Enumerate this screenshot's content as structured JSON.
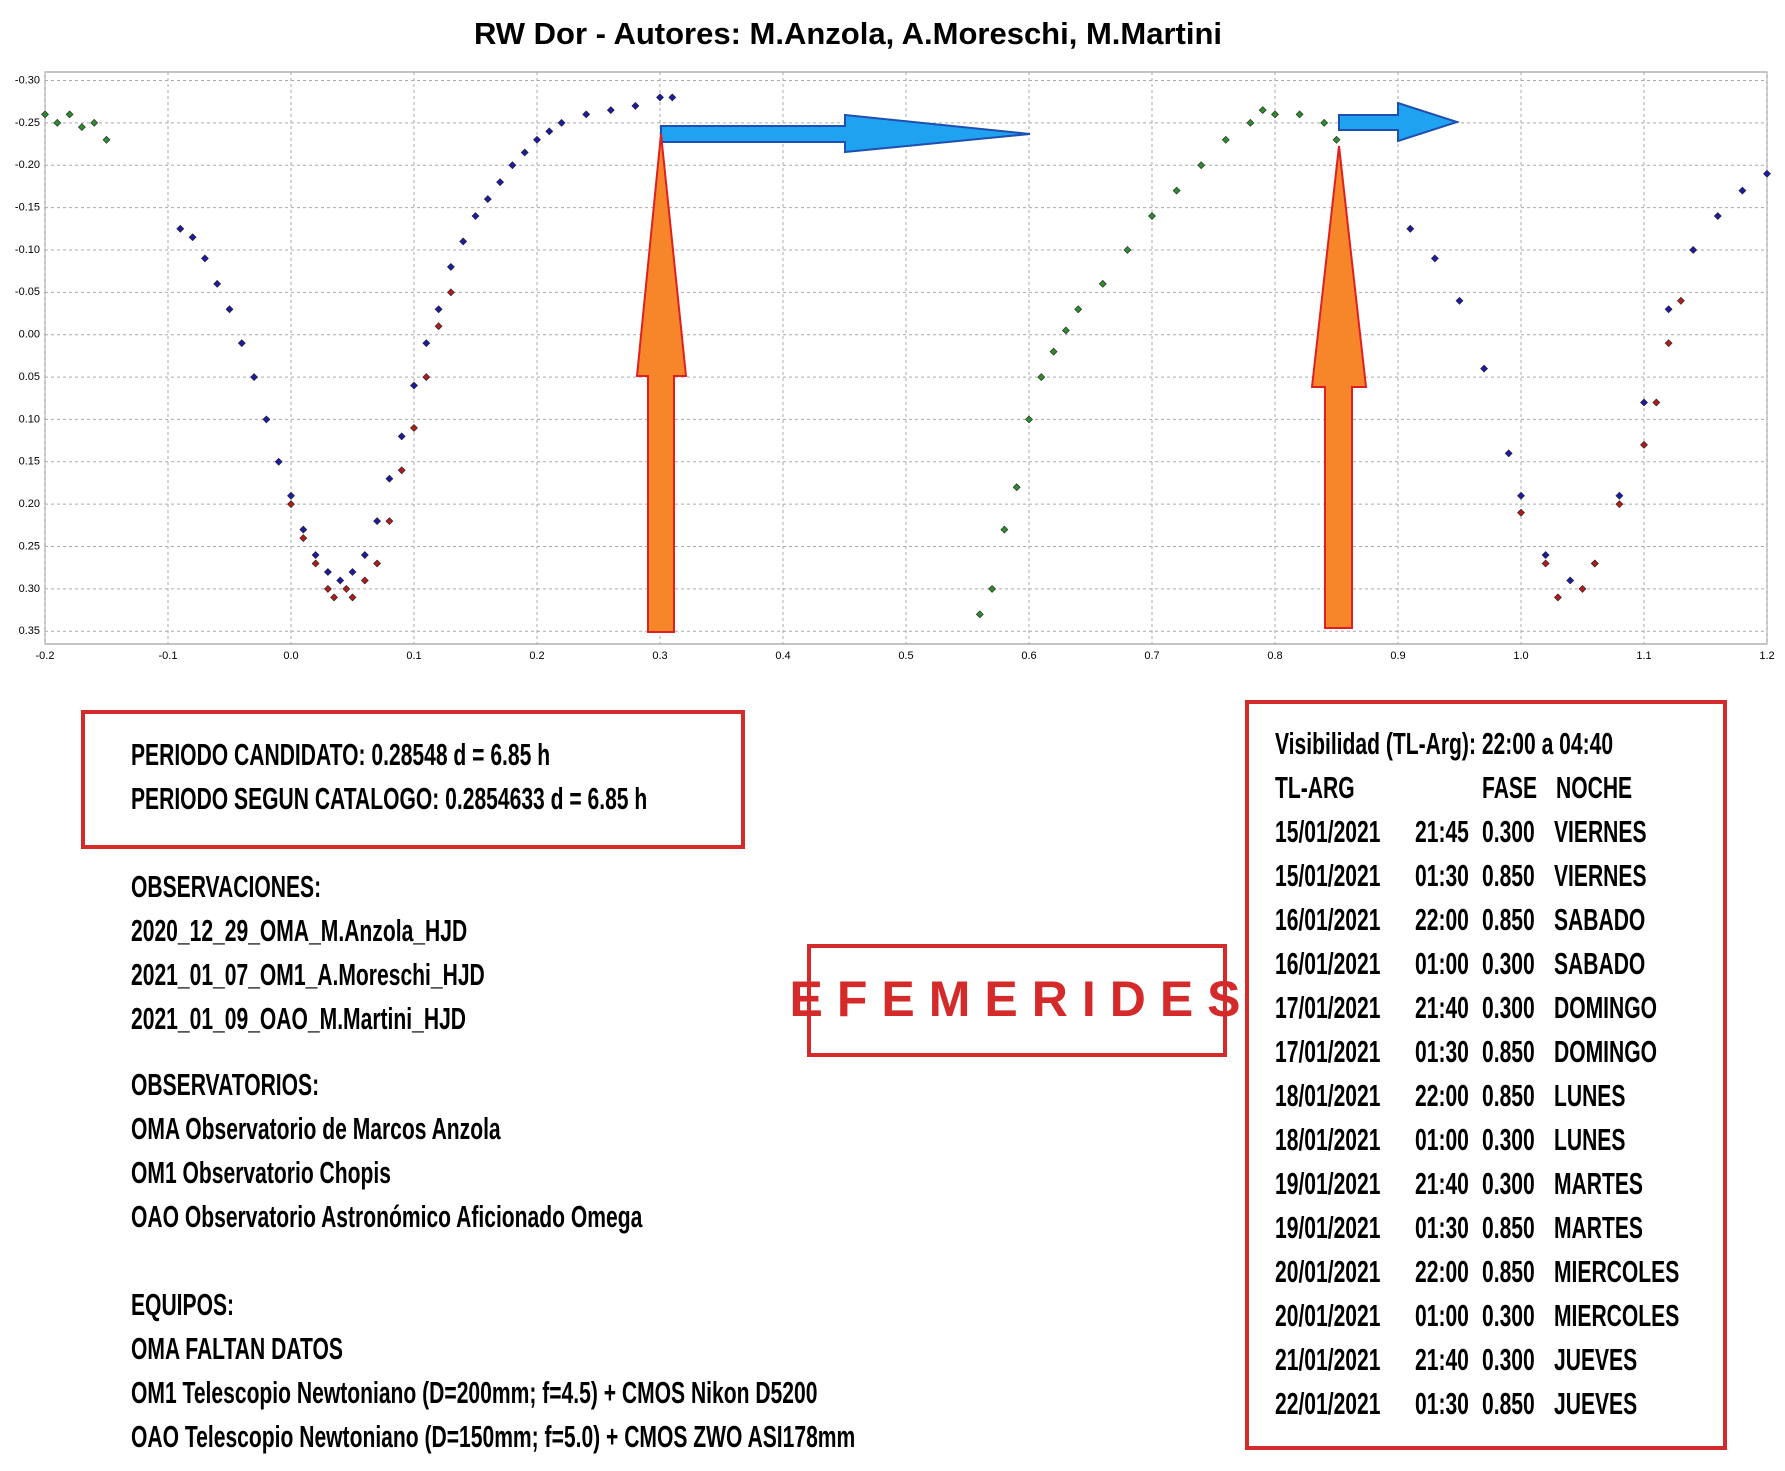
{
  "chart_data": {
    "type": "scatter",
    "title": "RW Dor - Autores: M.Anzola, A.Moreschi, M.Martini",
    "xlim": [
      -0.2,
      1.2
    ],
    "ylim": [
      -0.31,
      0.365
    ],
    "y_inverted": true,
    "grid": true,
    "xticks": [
      -0.2,
      -0.1,
      {
        "value": 0,
        "label": "0.0"
      },
      0.1,
      0.2,
      0.3,
      0.4,
      0.5,
      0.6,
      0.7,
      0.8,
      0.9,
      {
        "value": 1,
        "label": "1.0"
      },
      1.1,
      1.2
    ],
    "yticks": [
      {
        "value": -0.3,
        "label": "-0.30"
      },
      -0.25,
      {
        "value": -0.2,
        "label": "-0.20"
      },
      -0.15,
      {
        "value": -0.1,
        "label": "-0.10"
      },
      -0.05,
      {
        "value": 0,
        "label": "0.00"
      },
      0.05,
      {
        "value": 0.1,
        "label": "0.10"
      },
      0.15,
      {
        "value": 0.2,
        "label": "0.20"
      },
      0.25,
      {
        "value": 0.3,
        "label": "0.30"
      },
      0.35
    ],
    "series": [
      {
        "color": "#1c1ca0",
        "x": [
          -0.09,
          -0.08,
          -0.07,
          -0.06,
          -0.05,
          -0.04,
          -0.03,
          -0.02,
          -0.01,
          0.0,
          0.01,
          0.02,
          0.03,
          0.04,
          0.05,
          0.06,
          0.07,
          0.08,
          0.09,
          0.1,
          0.11,
          0.12,
          0.13,
          0.14,
          0.15,
          0.16,
          0.17,
          0.18,
          0.19,
          0.2,
          0.21,
          0.22,
          0.24,
          0.26,
          0.28,
          0.3,
          0.31,
          0.91,
          0.93,
          0.95,
          0.97,
          0.99,
          1.0,
          1.02,
          1.04,
          1.06,
          1.08,
          1.1,
          1.12,
          1.14,
          1.16,
          1.18,
          1.2
        ],
        "values": [
          -0.125,
          -0.115,
          -0.09,
          -0.06,
          -0.03,
          0.01,
          0.05,
          0.1,
          0.15,
          0.19,
          0.23,
          0.26,
          0.28,
          0.29,
          0.28,
          0.26,
          0.22,
          0.17,
          0.12,
          0.06,
          0.01,
          -0.03,
          -0.08,
          -0.11,
          -0.14,
          -0.16,
          -0.18,
          -0.2,
          -0.215,
          -0.23,
          -0.24,
          -0.25,
          -0.26,
          -0.265,
          -0.27,
          -0.28,
          -0.28,
          -0.125,
          -0.09,
          -0.04,
          0.04,
          0.14,
          0.19,
          0.26,
          0.29,
          0.27,
          0.19,
          0.08,
          -0.03,
          -0.1,
          -0.14,
          -0.17,
          -0.19
        ]
      },
      {
        "color": "#b01c1c",
        "x": [
          0.0,
          0.01,
          0.02,
          0.03,
          0.035,
          0.045,
          0.05,
          0.06,
          0.07,
          0.08,
          0.09,
          0.1,
          0.11,
          0.12,
          0.13,
          1.0,
          1.02,
          1.03,
          1.05,
          1.06,
          1.08,
          1.1,
          1.11,
          1.12,
          1.13
        ],
        "values": [
          0.2,
          0.24,
          0.27,
          0.3,
          0.31,
          0.3,
          0.31,
          0.29,
          0.27,
          0.22,
          0.16,
          0.11,
          0.05,
          -0.01,
          -0.05,
          0.21,
          0.27,
          0.31,
          0.3,
          0.27,
          0.2,
          0.13,
          0.08,
          0.01,
          -0.04
        ]
      },
      {
        "color": "#2e8b2e",
        "x": [
          -0.2,
          -0.19,
          -0.18,
          -0.17,
          -0.16,
          -0.15,
          0.56,
          0.57,
          0.58,
          0.59,
          0.6,
          0.61,
          0.62,
          0.63,
          0.64,
          0.66,
          0.68,
          0.7,
          0.72,
          0.74,
          0.76,
          0.78,
          0.79,
          0.8,
          0.82,
          0.84,
          0.85
        ],
        "values": [
          -0.26,
          -0.25,
          -0.26,
          -0.245,
          -0.25,
          -0.23,
          0.33,
          0.3,
          0.23,
          0.18,
          0.1,
          0.05,
          0.02,
          -0.005,
          -0.03,
          -0.06,
          -0.1,
          -0.14,
          -0.17,
          -0.2,
          -0.23,
          -0.25,
          -0.265,
          -0.26,
          -0.26,
          -0.25,
          -0.23
        ]
      }
    ]
  },
  "periods": [
    "PERIODO CANDIDATO: 0.28548 d = 6.85 h",
    "PERIODO SEGUN CATALOGO: 0.2854633 d = 6.85 h"
  ],
  "observations": {
    "title": "OBSERVACIONES:",
    "items": [
      "2020_12_29_OMA_M.Anzola_HJD",
      "2021_01_07_OM1_A.Moreschi_HJD",
      "2021_01_09_OAO_M.Martini_HJD"
    ]
  },
  "observatories": {
    "title": "OBSERVATORIOS:",
    "items": [
      "OMA Observatorio de Marcos Anzola",
      "OM1 Observatorio Chopis",
      "OAO Observatorio Astronómico Aficionado Omega"
    ]
  },
  "equipment": {
    "title": "EQUIPOS:",
    "items": [
      "OMA FALTAN DATOS",
      "OM1 Telescopio Newtoniano (D=200mm; f=4.5) + CMOS Nikon D5200",
      "OAO Telescopio Newtoniano (D=150mm; f=5.0) + CMOS ZWO ASI178mm"
    ]
  },
  "efemerides_label": "EFEMERIDES",
  "ephemeris": {
    "visibility": "Visibilidad (TL-Arg): 22:00 a 04:40",
    "header": [
      "TL-ARG",
      "FASE",
      "NOCHE"
    ],
    "rows": [
      [
        "15/01/2021",
        "21:45",
        "0.300",
        "VIERNES"
      ],
      [
        "15/01/2021",
        "01:30",
        "0.850",
        "VIERNES"
      ],
      [
        "16/01/2021",
        "22:00",
        "0.850",
        "SABADO"
      ],
      [
        "16/01/2021",
        "01:00",
        "0.300",
        "SABADO"
      ],
      [
        "17/01/2021",
        "21:40",
        "0.300",
        "DOMINGO"
      ],
      [
        "17/01/2021",
        "01:30",
        "0.850",
        "DOMINGO"
      ],
      [
        "18/01/2021",
        "22:00",
        "0.850",
        "LUNES"
      ],
      [
        "18/01/2021",
        "01:00",
        "0.300",
        "LUNES"
      ],
      [
        "19/01/2021",
        "21:40",
        "0.300",
        "MARTES"
      ],
      [
        "19/01/2021",
        "01:30",
        "0.850",
        "MARTES"
      ],
      [
        "20/01/2021",
        "22:00",
        "0.850",
        "MIERCOLES"
      ],
      [
        "20/01/2021",
        "01:00",
        "0.300",
        "MIERCOLES"
      ],
      [
        "21/01/2021",
        "21:40",
        "0.300",
        "JUEVES"
      ],
      [
        "22/01/2021",
        "01:30",
        "0.850",
        "JUEVES"
      ]
    ]
  }
}
